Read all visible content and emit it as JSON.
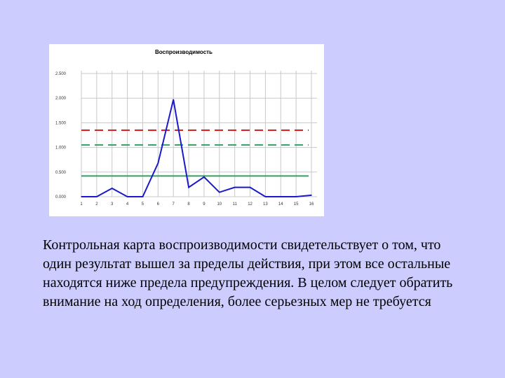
{
  "colors": {
    "background": "#ccccff",
    "series": "#1a1acc",
    "upper_action_limit": "#e02020",
    "upper_warning_limit": "#30a060",
    "center_line": "#30a060",
    "grid": "#c8c8c8"
  },
  "chart_data": {
    "type": "line",
    "title": "Воспроизводимость",
    "x": [
      1,
      2,
      3,
      4,
      5,
      6,
      7,
      8,
      9,
      10,
      11,
      12,
      13,
      14,
      15,
      16
    ],
    "x_tick_labels": [
      "1",
      "2",
      "3",
      "4",
      "5",
      "6",
      "7",
      "8",
      "9",
      "10",
      "11",
      "12",
      "13",
      "14",
      "15",
      "16"
    ],
    "y_tick_values": [
      0,
      0.5,
      1.0,
      1.5,
      2.0,
      2.5
    ],
    "y_tick_labels": [
      "0.000",
      "0.500",
      "1.000",
      "1.500",
      "2.000",
      "2.500"
    ],
    "ylim": [
      0,
      2.5
    ],
    "grid": true,
    "series": [
      {
        "values": [
          0.0,
          0.0,
          0.17,
          0.0,
          0.0,
          0.68,
          1.97,
          0.19,
          0.4,
          0.09,
          0.19,
          0.19,
          0.0,
          0.0,
          0.0,
          0.03
        ]
      }
    ],
    "reference_lines": [
      {
        "kind": "upper-action-limit",
        "y": 1.35,
        "style": "dashed"
      },
      {
        "kind": "upper-warning-limit",
        "y": 1.05,
        "style": "dashed"
      },
      {
        "kind": "center-line",
        "y": 0.42,
        "style": "solid"
      }
    ]
  },
  "caption": {
    "text": "Контрольная карта воспроизводимости свидетельствует о том, что один результат вышел за пределы действия, при этом все остальные находятся ниже предела предупреждения. В целом следует обратить внимание на ход определения, более серьезных мер не требуется"
  }
}
